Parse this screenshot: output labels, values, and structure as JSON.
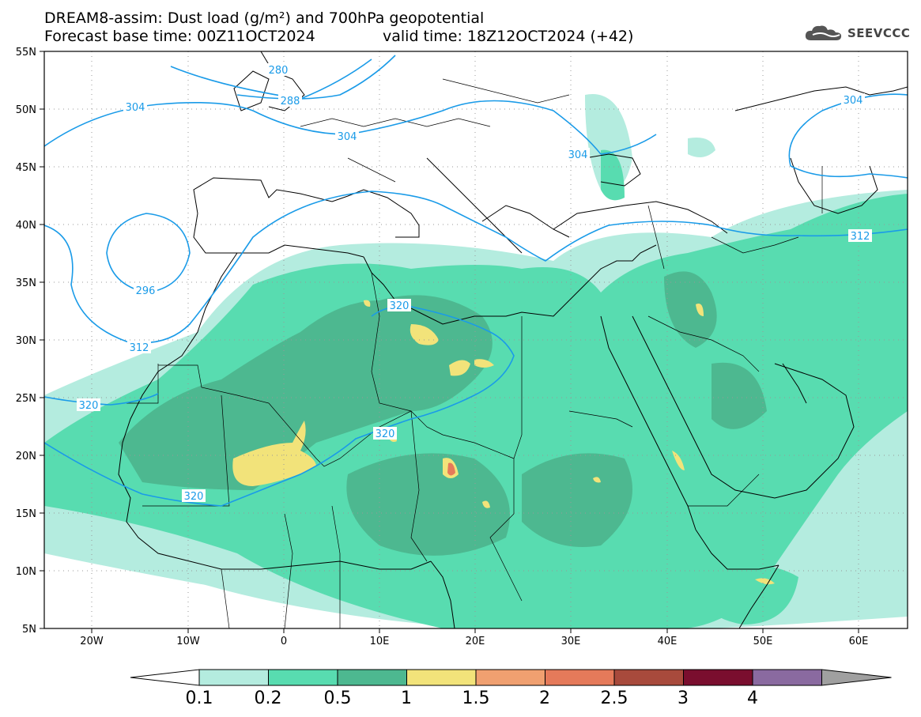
{
  "title_line1": "DREAM8-assim: Dust load (g/m²) and 700hPa geopotential",
  "title_line2": "Forecast base time: 00Z11OCT2024",
  "title_line2b": "valid time: 18Z12OCT2024 (+42)",
  "logo_text": "SEEVCCC",
  "logo_icon": "cloud-icon",
  "lat_labels": [
    "55N",
    "50N",
    "45N",
    "40N",
    "35N",
    "30N",
    "25N",
    "20N",
    "15N",
    "10N",
    "5N"
  ],
  "lon_labels": [
    "20W",
    "10W",
    "0",
    "10E",
    "20E",
    "30E",
    "40E",
    "50E",
    "60E"
  ],
  "contour_labels": [
    "280",
    "288",
    "296",
    "304",
    "304",
    "304",
    "304",
    "312",
    "312",
    "320",
    "320",
    "320",
    "320"
  ],
  "colorbar": {
    "labels": [
      "0.1",
      "0.2",
      "0.5",
      "1",
      "1.5",
      "2",
      "2.5",
      "3",
      "4"
    ],
    "colors": [
      "#b4ecdf",
      "#58dcb0",
      "#4db890",
      "#f2e37a",
      "#f0a070",
      "#e57a5a",
      "#a84a3c",
      "#7a0e2e",
      "#8a6aa0",
      "#a0a0a0"
    ]
  }
}
